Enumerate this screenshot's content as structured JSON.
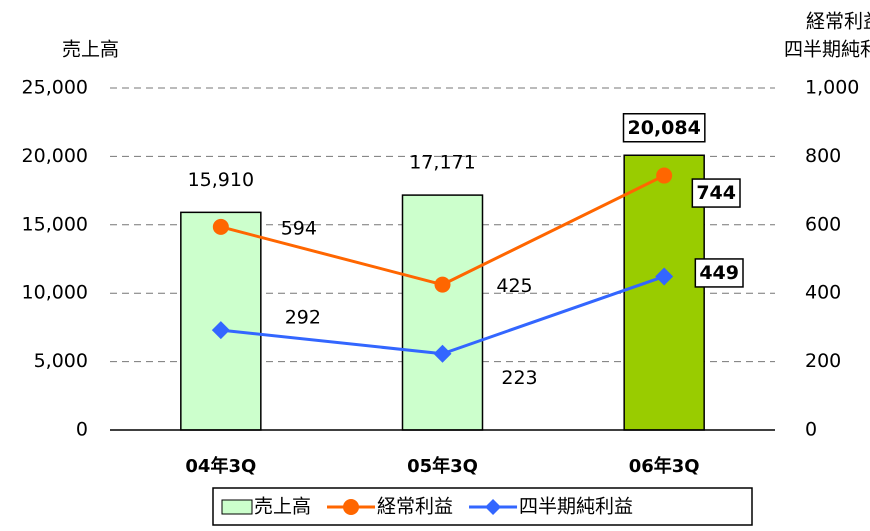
{
  "chart_data": {
    "type": "bar-line",
    "y_label": "売上高",
    "y2_label": [
      "経常利益",
      "四半期純利益"
    ],
    "categories": [
      "04年3Q",
      "05年3Q",
      "06年3Q"
    ],
    "series": [
      {
        "name": "売上高",
        "type": "bar",
        "color": "#ccffcc",
        "colors": [
          "#ccffcc",
          "#ccffcc",
          "#99cc00"
        ],
        "values": [
          15910,
          17171,
          20084
        ],
        "value_labels": [
          "15,910",
          "17,171",
          "20,084"
        ]
      },
      {
        "name": "経常利益",
        "type": "line",
        "marker": "circle",
        "color": "#ff6600",
        "axis": "y2",
        "values": [
          594,
          425,
          744
        ]
      },
      {
        "name": "四半期純利益",
        "type": "line",
        "marker": "diamond",
        "color": "#3366ff",
        "axis": "y2",
        "values": [
          292,
          223,
          449
        ]
      }
    ],
    "ylim": [
      0,
      25000
    ],
    "yticks": [
      0,
      {
        "value": 5000,
        "label": "5,000"
      },
      {
        "value": 10000,
        "label": "10,000"
      },
      {
        "value": 15000,
        "label": "15,000"
      },
      {
        "value": 20000,
        "label": "20,000"
      },
      {
        "value": 25000,
        "label": "25,000"
      }
    ],
    "y2lim": [
      0,
      1000
    ],
    "y2ticks": [
      0,
      200,
      400,
      600,
      800,
      {
        "value": 1000,
        "label": "1,000"
      }
    ],
    "grid": true,
    "legend": "bottom"
  }
}
